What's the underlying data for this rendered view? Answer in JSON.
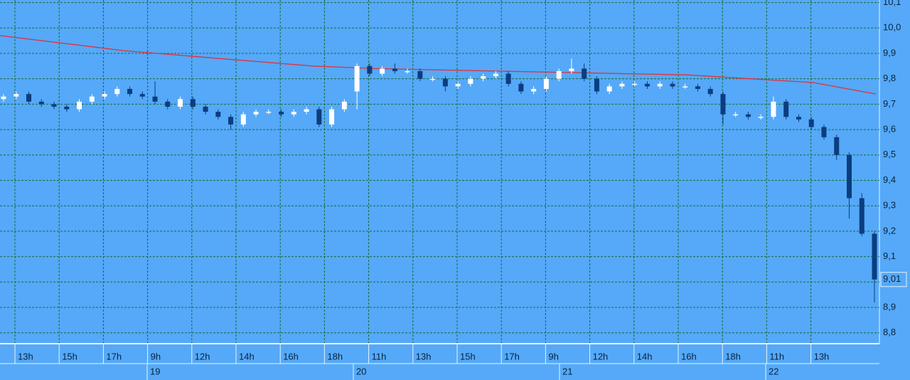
{
  "chart_data": {
    "type": "candlestick",
    "open": [
      9.72,
      9.73,
      9.74,
      9.71,
      9.7,
      9.69,
      9.68,
      9.71,
      9.73,
      9.74,
      9.76,
      9.74,
      9.73,
      9.71,
      9.69,
      9.72,
      9.69,
      9.67,
      9.65,
      9.62,
      9.66,
      9.67,
      9.67,
      9.66,
      9.67,
      9.68,
      9.62,
      9.68,
      9.75,
      9.85,
      9.82,
      9.84,
      9.83,
      9.83,
      9.8,
      9.8,
      9.77,
      9.78,
      9.8,
      9.81,
      9.82,
      9.78,
      9.75,
      9.76,
      9.8,
      9.83,
      9.84,
      9.8,
      9.75,
      9.77,
      9.78,
      9.78,
      9.77,
      9.78,
      9.77,
      9.77,
      9.76,
      9.74,
      9.66,
      9.66,
      9.65,
      9.65,
      9.71,
      9.65,
      9.64,
      9.61,
      9.57,
      9.5,
      9.33,
      9.19
    ],
    "high": [
      9.74,
      9.75,
      9.75,
      9.72,
      9.71,
      9.7,
      9.72,
      9.74,
      9.75,
      9.77,
      9.77,
      9.75,
      9.79,
      9.72,
      9.73,
      9.73,
      9.7,
      9.68,
      9.66,
      9.67,
      9.68,
      9.68,
      9.68,
      9.68,
      9.69,
      9.69,
      9.69,
      9.72,
      9.86,
      9.86,
      9.85,
      9.86,
      9.84,
      9.84,
      9.81,
      9.81,
      9.79,
      9.81,
      9.82,
      9.83,
      9.83,
      9.79,
      9.77,
      9.81,
      9.84,
      9.88,
      9.86,
      9.81,
      9.78,
      9.79,
      9.79,
      9.79,
      9.79,
      9.79,
      9.78,
      9.78,
      9.77,
      9.75,
      9.67,
      9.67,
      9.66,
      9.73,
      9.72,
      9.66,
      9.65,
      9.62,
      9.58,
      9.51,
      9.35,
      9.2
    ],
    "low": [
      9.71,
      9.72,
      9.7,
      9.69,
      9.68,
      9.67,
      9.67,
      9.7,
      9.72,
      9.73,
      9.73,
      9.72,
      9.7,
      9.68,
      9.68,
      9.68,
      9.66,
      9.64,
      9.6,
      9.61,
      9.65,
      9.66,
      9.65,
      9.65,
      9.66,
      9.61,
      9.61,
      9.67,
      9.68,
      9.81,
      9.81,
      9.82,
      9.82,
      9.79,
      9.79,
      9.75,
      9.76,
      9.77,
      9.79,
      9.8,
      9.77,
      9.74,
      9.74,
      9.75,
      9.79,
      9.82,
      9.79,
      9.74,
      9.74,
      9.76,
      9.77,
      9.76,
      9.76,
      9.76,
      9.76,
      9.75,
      9.73,
      9.62,
      9.65,
      9.64,
      9.64,
      9.64,
      9.64,
      9.63,
      9.6,
      9.56,
      9.48,
      9.25,
      9.18,
      8.92
    ],
    "close": [
      9.73,
      9.74,
      9.71,
      9.7,
      9.69,
      9.68,
      9.71,
      9.73,
      9.74,
      9.76,
      9.74,
      9.73,
      9.71,
      9.69,
      9.72,
      9.69,
      9.67,
      9.65,
      9.62,
      9.66,
      9.67,
      9.67,
      9.66,
      9.67,
      9.68,
      9.62,
      9.68,
      9.71,
      9.85,
      9.82,
      9.84,
      9.83,
      9.83,
      9.8,
      9.8,
      9.77,
      9.78,
      9.8,
      9.81,
      9.82,
      9.78,
      9.75,
      9.76,
      9.8,
      9.83,
      9.84,
      9.8,
      9.75,
      9.77,
      9.78,
      9.78,
      9.77,
      9.78,
      9.77,
      9.77,
      9.76,
      9.74,
      9.66,
      9.66,
      9.65,
      9.65,
      9.71,
      9.65,
      9.64,
      9.61,
      9.57,
      9.5,
      9.33,
      9.19,
      9.01
    ],
    "up_color": "#ffffff",
    "down_color": "#0b3d80",
    "moving_average": {
      "color": "#e0323a",
      "values": [
        9.97,
        9.94,
        9.91,
        9.89,
        9.87,
        9.85,
        9.84,
        9.835,
        9.83,
        9.825,
        9.82,
        9.815,
        9.8,
        9.785,
        9.74
      ]
    },
    "ylim": [
      8.76,
      10.11
    ],
    "yticks": [
      {
        "value": 8.8,
        "label": "8,8"
      },
      {
        "value": 8.9,
        "label": "8,9"
      },
      {
        "value": 9.0,
        "label": "9,0"
      },
      {
        "value": 9.1,
        "label": "9,1"
      },
      {
        "value": 9.2,
        "label": "9,2"
      },
      {
        "value": 9.3,
        "label": "9,3"
      },
      {
        "value": 9.4,
        "label": "9,4"
      },
      {
        "value": 9.5,
        "label": "9,5"
      },
      {
        "value": 9.6,
        "label": "9,6"
      },
      {
        "value": 9.7,
        "label": "9,7"
      },
      {
        "value": 9.8,
        "label": "9,8"
      },
      {
        "value": 9.9,
        "label": "9,9"
      },
      {
        "value": 10.0,
        "label": "10,0"
      },
      {
        "value": 10.1,
        "label": "10,1"
      }
    ],
    "time_labels": [
      "13h",
      "15h",
      "17h",
      "9h",
      "12h",
      "14h",
      "16h",
      "18h",
      "11h",
      "13h",
      "15h",
      "17h",
      "9h",
      "12h",
      "14h",
      "16h",
      "18h",
      "11h",
      "13h"
    ],
    "date_labels": [
      "19",
      "20",
      "21",
      "22"
    ],
    "last_price": {
      "value": 9.01,
      "label": "9,01"
    },
    "grid": true
  }
}
